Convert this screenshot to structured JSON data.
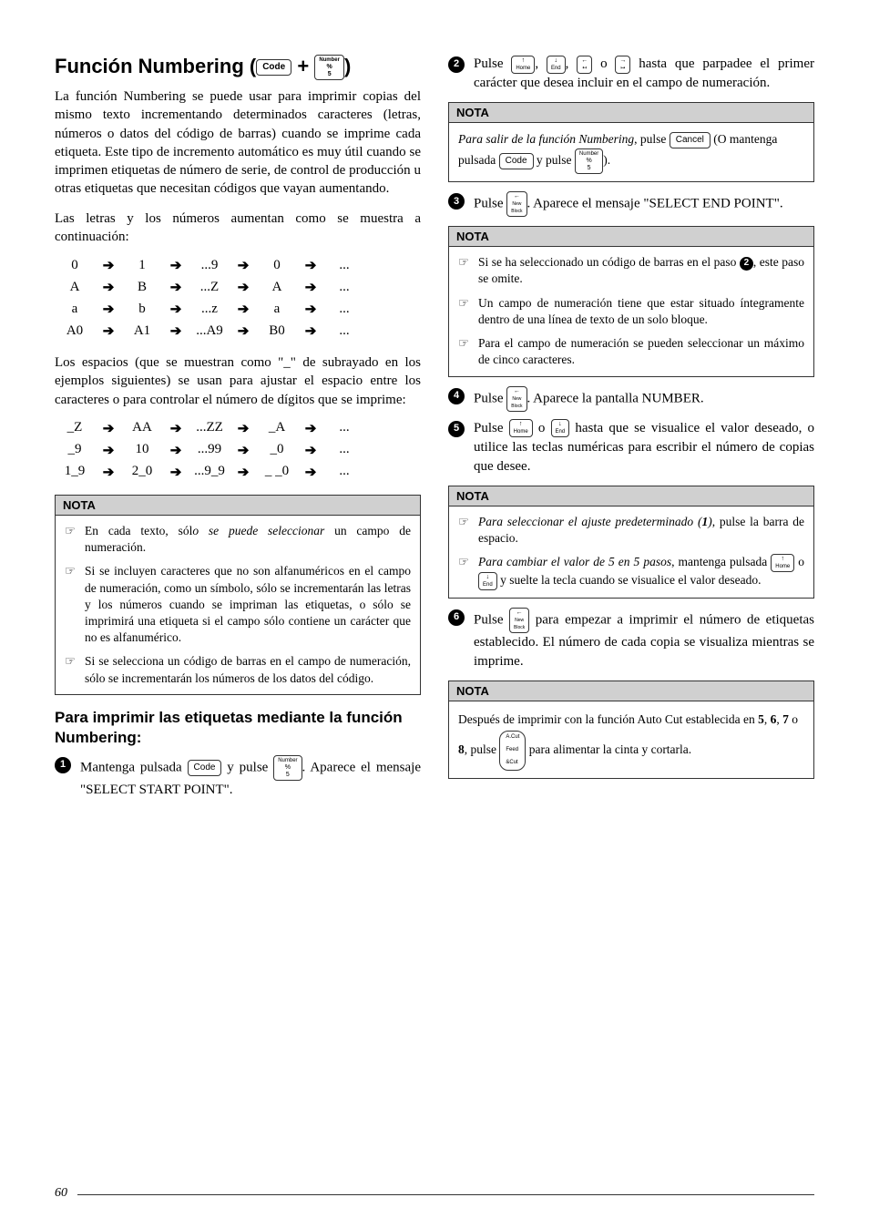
{
  "title_prefix": "Función Numbering (",
  "title_suffix": ")",
  "key_code": "Code",
  "plus": "+",
  "key_number_top": "Number",
  "key_number_mid": "%",
  "key_number_bot": "5",
  "para1": "La función Numbering se puede usar para imprimir copias del mismo texto incrementando determinados caracteres (letras, números o datos del código de barras) cuando se imprime cada etiqueta. Este tipo de incremento automático es muy útil cuando se imprimen etiquetas de número de serie, de control de producción u otras etiquetas que necesitan códigos que vayan aumentando.",
  "para2": "Las letras y los números aumentan como se muestra a continuación:",
  "arrow": "➔",
  "ellipsis": "...",
  "seq1": {
    "r": [
      [
        "0",
        "1",
        "...9",
        "0"
      ],
      [
        "A",
        "B",
        "...Z",
        "A"
      ],
      [
        "a",
        "b",
        "...z",
        "a"
      ],
      [
        "A0",
        "A1",
        "...A9",
        "B0"
      ]
    ]
  },
  "para3": "Los espacios (que se muestran como \"_\" de subrayado en los ejemplos siguientes) se usan para ajustar el espacio entre los caracteres o para controlar el número de dígitos que se imprime:",
  "seq2": {
    "r": [
      [
        "_Z",
        "AA",
        "...ZZ",
        "_A"
      ],
      [
        "_9",
        "10",
        "...99",
        "_0"
      ],
      [
        "1_9",
        "2_0",
        "...9_9",
        "_ _0"
      ]
    ]
  },
  "nota_label": "NOTA",
  "pointer": "☞",
  "nota1": {
    "items": [
      {
        "pre": "En cada texto, sól",
        "it": "o se puede seleccionar",
        "post": " un campo de numeración."
      },
      {
        "plain": "Si se incluyen caracteres que no son alfanuméricos en el campo de numeración, como un símbolo, sólo se incrementarán las letras y los números cuando se impriman las etiquetas, o sólo se imprimirá una etiqueta si el campo sólo contiene un carácter que no es alfanumérico."
      },
      {
        "plain": "Si se selecciona un código de barras en el campo de numeración, sólo se incrementarán los números de los datos del código."
      }
    ]
  },
  "subheading": "Para imprimir las etiquetas mediante la función Numbering:",
  "step1_a": "Mantenga pulsada ",
  "step1_b": " y pulse ",
  "step1_c": ". Aparece el mensaje \"SELECT START POINT\".",
  "step2_a": "Pulse ",
  "key_home": "Home",
  "key_end": "End",
  "key_left": "←",
  "key_right": "→",
  "comma": ", ",
  "or": " o ",
  "step2_b": " hasta que parpadee el primer carácter que desea incluir en el campo de numeración.",
  "nota2_a_it": "Para salir de la función Numbering",
  "nota2_a_mid": ", pulse ",
  "key_cancel": "Cancel",
  "nota2_a_or": "(O mantenga pulsada ",
  "nota2_a_and": " y pulse ",
  "nota2_a_end": ").",
  "step3_a": "Pulse ",
  "key_newblock_top": "←",
  "key_newblock_bot": "New\nBlock",
  "step3_b": ". Aparece el mensaje \"SELECT END POINT\".",
  "nota3": {
    "i1": "Si se ha seleccionado un código de barras en el paso ",
    "i1b": ", este paso se omite.",
    "i2": "Un campo de numeración tiene que estar situado íntegramente dentro de una línea de texto de un solo bloque.",
    "i3": "Para el campo de numeración se pueden seleccionar un máximo de cinco caracteres."
  },
  "step4_b": ". Aparece la pantalla NUMBER.",
  "step5_a": "Pulse ",
  "step5_b": " hasta que se visualice el valor deseado, o utilice las teclas numéricas para escribir el número de copias que desee.",
  "nota4": {
    "i1_it": "Para seleccionar el ajuste predeterminado (",
    "i1_bold": "1",
    "i1_post": "), pulse la barra de espacio.",
    "i2_it": "Para cambiar el valor de 5 en 5 pasos",
    "i2_a": ", mantenga pulsada ",
    "i2_b": " y suelte la tecla cuando se visualice el valor deseado."
  },
  "step6_a": "Pulse ",
  "step6_b": " para empezar a imprimir el número de etiquetas establecido. El número de cada copia se visualiza mientras se imprime.",
  "nota5_a": "Después de imprimir con la función Auto Cut establecida en ",
  "nota5_567": "5",
  "nota5_6": "6",
  "nota5_7": "7",
  "nota5_8": "8",
  "nota5_b": ", pulse ",
  "key_feed_top": "A.Cut",
  "key_feed_bot": "Feed\n&Cut",
  "nota5_c": " para alimentar la cinta y cortarla.",
  "pagenum": "60"
}
